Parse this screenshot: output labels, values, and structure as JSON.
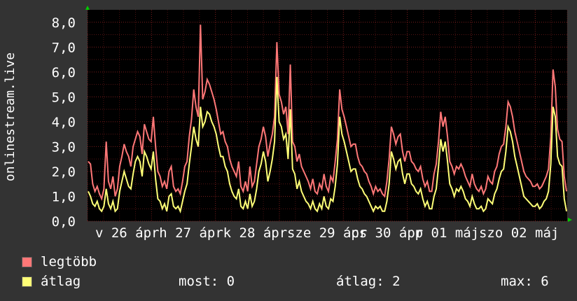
{
  "colors": {
    "background": "#333333",
    "plot_bg": "#000000",
    "grid": "#7a1d1d",
    "max_line": "#ff7777",
    "avg_line": "#ffff77",
    "axis_arrow": "#00cc00",
    "text": "#ffffff"
  },
  "legend": {
    "max_label": "legtöbb",
    "avg_label": "átlag"
  },
  "stats": {
    "now": "most: 0",
    "avg": "átlag: 2",
    "max": "max: 6"
  },
  "chart_data": {
    "type": "line",
    "ylabel": "onlinestream.live",
    "ylim": [
      0,
      8.5
    ],
    "yticks": [
      "0,0",
      "1,0",
      "2,0",
      "3,0",
      "4,0",
      "5,0",
      "6,0",
      "7,0",
      "8,0"
    ],
    "xlim": [
      0,
      7.5
    ],
    "xticks": [
      {
        "x": 0.12,
        "label": "v 26 ápr"
      },
      {
        "x": 1.12,
        "label": "h 27 ápr"
      },
      {
        "x": 2.12,
        "label": "k 28 ápr"
      },
      {
        "x": 3.12,
        "label": "sze 29 ápr"
      },
      {
        "x": 4.12,
        "label": "cs 30 ápr"
      },
      {
        "x": 5.12,
        "label": "p 01 máj"
      },
      {
        "x": 6.12,
        "label": "szo 02 máj"
      }
    ],
    "series": [
      {
        "name": "legtöbb",
        "color": "#ff7777",
        "values": [
          2.4,
          2.3,
          1.5,
          1.2,
          1.4,
          1.1,
          0.9,
          1.3,
          3.2,
          1.6,
          1.3,
          1.8,
          1.0,
          1.3,
          2.2,
          2.6,
          3.1,
          2.8,
          2.6,
          2.2,
          3.0,
          3.3,
          3.6,
          3.4,
          2.7,
          3.9,
          3.6,
          3.3,
          3.2,
          4.2,
          3.0,
          2.0,
          1.8,
          1.4,
          1.6,
          1.3,
          2.0,
          2.2,
          1.4,
          1.2,
          1.3,
          1.1,
          1.6,
          2.2,
          2.4,
          3.4,
          4.1,
          5.3,
          4.6,
          4.2,
          7.9,
          4.9,
          5.2,
          5.7,
          5.5,
          5.2,
          4.9,
          4.5,
          4.0,
          3.5,
          3.6,
          3.2,
          3.0,
          2.5,
          2.2,
          2.0,
          1.8,
          2.4,
          1.4,
          1.2,
          1.6,
          1.2,
          2.2,
          1.4,
          1.6,
          2.3,
          3.0,
          3.3,
          3.8,
          3.4,
          2.6,
          3.1,
          3.5,
          4.2,
          7.2,
          5.1,
          4.8,
          4.3,
          4.6,
          3.5,
          6.3,
          3.2,
          3.0,
          2.4,
          2.7,
          2.2,
          2.0,
          1.8,
          1.6,
          1.3,
          1.7,
          1.2,
          1.1,
          1.5,
          1.3,
          1.9,
          1.4,
          1.2,
          1.8,
          1.6,
          2.4,
          3.3,
          5.3,
          4.5,
          4.2,
          3.8,
          3.4,
          3.0,
          3.1,
          3.1,
          2.6,
          2.3,
          2.2,
          2.0,
          1.9,
          1.6,
          1.4,
          1.1,
          1.4,
          1.2,
          1.3,
          1.1,
          1.0,
          1.6,
          2.5,
          3.8,
          3.5,
          3.1,
          3.4,
          3.5,
          2.8,
          2.4,
          2.8,
          2.8,
          2.4,
          2.3,
          2.1,
          2.0,
          2.2,
          1.7,
          1.4,
          1.6,
          1.2,
          1.2,
          1.9,
          2.3,
          3.2,
          4.4,
          3.8,
          4.2,
          3.4,
          2.4,
          2.2,
          1.9,
          2.2,
          2.1,
          2.3,
          2.1,
          1.8,
          1.6,
          1.4,
          1.9,
          1.5,
          1.3,
          1.2,
          1.4,
          1.1,
          1.3,
          1.8,
          1.6,
          1.5,
          2.0,
          2.2,
          2.7,
          3.0,
          3.1,
          3.8,
          4.8,
          4.6,
          4.2,
          3.6,
          3.2,
          2.8,
          2.4,
          2.0,
          1.8,
          1.7,
          1.6,
          1.4,
          1.4,
          1.5,
          1.3,
          1.4,
          1.6,
          1.8,
          2.1,
          3.4,
          6.1,
          5.4,
          3.7,
          3.3,
          3.2,
          1.8,
          1.2
        ]
      },
      {
        "name": "átlag",
        "color": "#ffff77",
        "values": [
          1.2,
          1.0,
          0.7,
          0.6,
          0.8,
          0.5,
          0.4,
          0.6,
          1.3,
          0.7,
          0.5,
          0.8,
          0.4,
          0.5,
          1.2,
          1.6,
          2.0,
          1.7,
          1.4,
          1.3,
          1.9,
          2.4,
          2.6,
          2.4,
          1.8,
          2.8,
          2.6,
          2.3,
          2.1,
          2.8,
          1.7,
          0.9,
          0.8,
          0.5,
          0.7,
          0.4,
          1.0,
          1.1,
          0.6,
          0.5,
          0.6,
          0.4,
          0.8,
          1.2,
          1.5,
          2.3,
          3.0,
          3.8,
          3.3,
          3.0,
          4.6,
          3.8,
          4.0,
          4.4,
          4.3,
          4.0,
          3.8,
          3.5,
          3.0,
          2.6,
          2.6,
          2.2,
          2.0,
          1.5,
          1.2,
          1.0,
          0.9,
          1.3,
          0.6,
          0.5,
          0.8,
          0.5,
          1.1,
          0.6,
          0.8,
          1.3,
          2.0,
          2.3,
          2.8,
          2.4,
          1.6,
          2.0,
          2.5,
          3.2,
          5.8,
          4.0,
          3.8,
          3.3,
          3.5,
          2.5,
          4.5,
          2.1,
          1.9,
          1.3,
          1.6,
          1.2,
          1.0,
          0.8,
          0.7,
          0.5,
          0.8,
          0.5,
          0.4,
          0.7,
          0.5,
          1.0,
          0.6,
          0.5,
          0.9,
          0.8,
          1.4,
          2.3,
          4.2,
          3.5,
          3.2,
          2.8,
          2.4,
          2.0,
          2.1,
          2.1,
          1.7,
          1.4,
          1.3,
          1.1,
          1.0,
          0.8,
          0.6,
          0.4,
          0.6,
          0.5,
          0.6,
          0.4,
          0.4,
          0.8,
          1.5,
          2.8,
          2.5,
          2.1,
          2.4,
          2.5,
          1.9,
          1.5,
          1.9,
          1.9,
          1.5,
          1.4,
          1.2,
          1.1,
          1.3,
          0.9,
          0.6,
          0.8,
          0.5,
          0.5,
          1.0,
          1.3,
          2.2,
          3.3,
          2.8,
          3.2,
          2.4,
          1.5,
          1.3,
          1.0,
          1.3,
          1.2,
          1.4,
          1.2,
          0.9,
          0.8,
          0.6,
          1.0,
          0.7,
          0.5,
          0.5,
          0.6,
          0.4,
          0.5,
          0.9,
          0.8,
          0.7,
          1.1,
          1.3,
          1.7,
          2.0,
          2.1,
          2.8,
          3.8,
          3.6,
          3.2,
          2.6,
          2.2,
          1.8,
          1.4,
          1.0,
          0.9,
          0.8,
          0.7,
          0.6,
          0.6,
          0.7,
          0.5,
          0.6,
          0.8,
          0.9,
          1.2,
          2.3,
          4.6,
          4.2,
          2.6,
          2.3,
          2.2,
          0.9,
          0.4
        ]
      }
    ]
  }
}
